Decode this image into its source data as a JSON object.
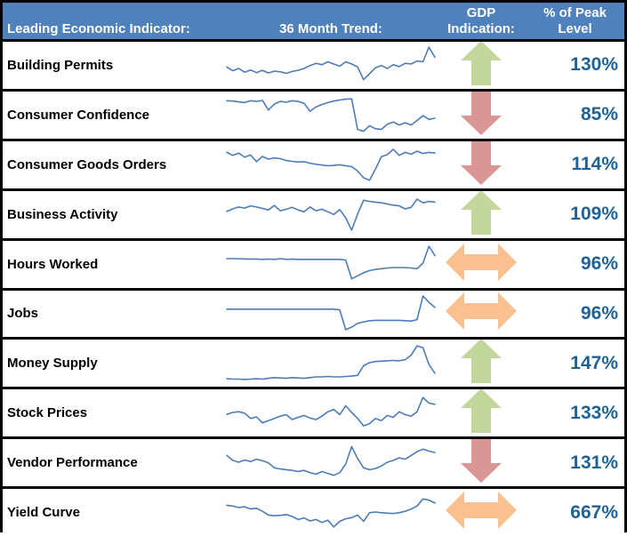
{
  "colors": {
    "header_bg": "#4f81bd",
    "header_text": "#ffffff",
    "row_bg": "#ffffff",
    "border": "#000000",
    "label_text": "#000000",
    "pct_text": "#1f6295",
    "sparkline": "#4d7cb8",
    "arrow_up": "#c3d69b",
    "arrow_down": "#d99694",
    "arrow_neutral": "#fac090"
  },
  "chart_data": {
    "type": "table",
    "columns": [
      {
        "id": "indicator",
        "label": "Leading Economic Indicator:"
      },
      {
        "id": "trend",
        "label": "36 Month Trend:"
      },
      {
        "id": "gdp_indication",
        "label_line1": "GDP",
        "label_line2": "Indication:"
      },
      {
        "id": "peak_level",
        "label_line1": "% of Peak",
        "label_line2": "Level"
      }
    ],
    "sparkline_note": "36-month trend, values normalized 0-100 (estimated from pixels)",
    "rows": [
      {
        "indicator": "Building Permits",
        "gdp_indication": "up",
        "pct_of_peak": "130%",
        "sparkline": [
          42,
          32,
          38,
          28,
          34,
          27,
          33,
          26,
          31,
          29,
          25,
          30,
          33,
          38,
          46,
          52,
          48,
          56,
          50,
          44,
          56,
          50,
          42,
          8,
          24,
          40,
          46,
          38,
          48,
          43,
          52,
          50,
          58,
          56,
          95,
          68
        ]
      },
      {
        "indicator": "Consumer Confidence",
        "gdp_indication": "down",
        "pct_of_peak": "85%",
        "sparkline": [
          85,
          84,
          82,
          80,
          85,
          83,
          86,
          60,
          76,
          83,
          81,
          85,
          83,
          78,
          57,
          68,
          75,
          80,
          84,
          87,
          89,
          90,
          8,
          3,
          18,
          10,
          8,
          22,
          28,
          20,
          26,
          20,
          32,
          45,
          35,
          38
        ]
      },
      {
        "indicator": "Consumer Goods Orders",
        "gdp_indication": "down",
        "pct_of_peak": "114%",
        "sparkline": [
          80,
          72,
          78,
          67,
          73,
          55,
          69,
          62,
          65,
          63,
          58,
          56,
          54,
          55,
          51,
          48,
          46,
          44,
          45,
          47,
          44,
          42,
          30,
          12,
          5,
          35,
          68,
          74,
          88,
          72,
          80,
          75,
          83,
          77,
          80,
          78
        ]
      },
      {
        "indicator": "Business Activity",
        "gdp_indication": "up",
        "pct_of_peak": "109%",
        "sparkline": [
          55,
          62,
          67,
          64,
          70,
          67,
          63,
          59,
          71,
          57,
          61,
          66,
          59,
          54,
          67,
          57,
          61,
          54,
          47,
          60,
          38,
          5,
          48,
          85,
          82,
          80,
          78,
          75,
          72,
          70,
          62,
          66,
          88,
          78,
          82,
          80
        ]
      },
      {
        "indicator": "Hours Worked",
        "gdp_indication": "neutral",
        "pct_of_peak": "96%",
        "sparkline": [
          62,
          62,
          62,
          61,
          61,
          61,
          60,
          61,
          60,
          62,
          60,
          61,
          60,
          60,
          60,
          60,
          60,
          60,
          60,
          60,
          58,
          8,
          16,
          24,
          30,
          33,
          35,
          37,
          38,
          38,
          38,
          37,
          35,
          50,
          95,
          70
        ]
      },
      {
        "indicator": "Jobs",
        "gdp_indication": "neutral",
        "pct_of_peak": "96%",
        "sparkline": [
          60,
          60,
          60,
          60,
          60,
          60,
          60,
          60,
          60,
          60,
          60,
          60,
          60,
          60,
          60,
          60,
          60,
          60,
          60,
          58,
          5,
          12,
          22,
          26,
          29,
          30,
          30,
          30,
          30,
          30,
          29,
          28,
          32,
          95,
          78,
          65
        ]
      },
      {
        "indicator": "Money Supply",
        "gdp_indication": "up",
        "pct_of_peak": "147%",
        "sparkline": [
          7,
          6,
          6,
          5,
          6,
          7,
          6,
          8,
          10,
          9,
          8,
          10,
          9,
          8,
          10,
          12,
          12,
          13,
          12,
          12,
          13,
          14,
          16,
          42,
          50,
          53,
          54,
          55,
          56,
          55,
          58,
          70,
          95,
          90,
          45,
          22
        ]
      },
      {
        "indicator": "Stock Prices",
        "gdp_indication": "up",
        "pct_of_peak": "133%",
        "sparkline": [
          45,
          50,
          52,
          48,
          34,
          38,
          22,
          28,
          34,
          40,
          44,
          31,
          37,
          42,
          35,
          31,
          40,
          52,
          58,
          44,
          68,
          50,
          34,
          14,
          20,
          34,
          28,
          42,
          37,
          52,
          44,
          40,
          52,
          90,
          75,
          72
        ]
      },
      {
        "indicator": "Vendor Performance",
        "gdp_indication": "down",
        "pct_of_peak": "131%",
        "sparkline": [
          68,
          55,
          50,
          56,
          52,
          58,
          54,
          48,
          35,
          32,
          30,
          28,
          25,
          28,
          22,
          18,
          25,
          20,
          15,
          22,
          45,
          92,
          60,
          35,
          30,
          33,
          40,
          50,
          55,
          62,
          58,
          68,
          78,
          85,
          80,
          76
        ]
      },
      {
        "indicator": "Yield Curve",
        "gdp_indication": "neutral",
        "pct_of_peak": "667%",
        "sparkline": [
          68,
          66,
          62,
          64,
          58,
          60,
          52,
          42,
          40,
          41,
          43,
          38,
          30,
          34,
          26,
          30,
          22,
          28,
          10,
          25,
          32,
          35,
          42,
          25,
          48,
          50,
          48,
          47,
          46,
          48,
          52,
          58,
          66,
          85,
          82,
          74
        ]
      }
    ]
  }
}
